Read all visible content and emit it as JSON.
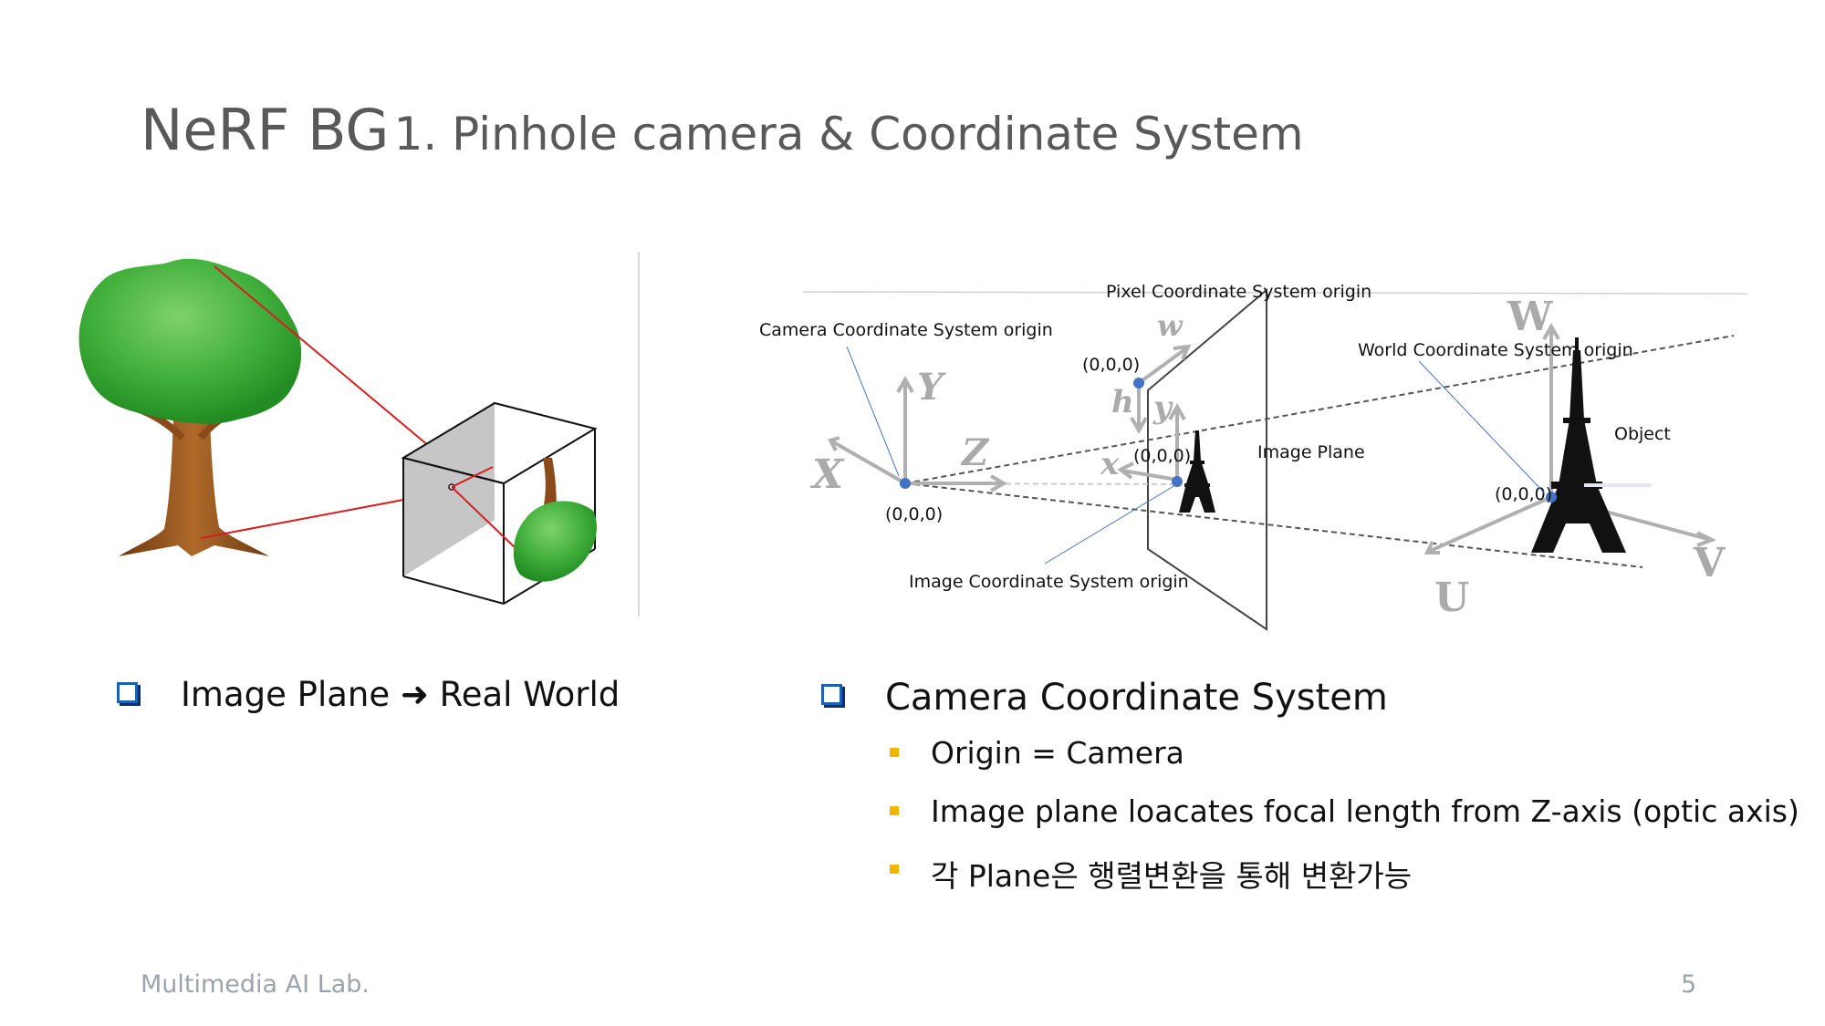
{
  "title": {
    "main": "NeRF BG",
    "sub": "1. Pinhole camera & Coordinate System"
  },
  "left_bullet": {
    "text_before": "Image Plane",
    "arrow": "➜",
    "text_after": "Real World"
  },
  "right_bullet": {
    "heading": "Camera Coordinate System",
    "items": [
      "Origin = Camera",
      "Image plane loacates focal length from Z-axis (optic axis)",
      "각 Plane은 행렬변환을 통해 변환가능"
    ]
  },
  "diagram": {
    "labels": {
      "pixel_origin": "Pixel Coordinate System origin",
      "camera_origin": "Camera Coordinate System origin",
      "world_origin": "World Coordinate System origin",
      "image_origin": "Image Coordinate System origin",
      "image_plane": "Image Plane",
      "object": "Object"
    },
    "coords": {
      "camera": "(0,0,0)",
      "pixel": "(0,0,0)",
      "image": "(0,0,0)",
      "world": "(0,0,0)"
    },
    "axes": {
      "camera": [
        "X",
        "Y",
        "Z"
      ],
      "pixel": [
        "w",
        "h"
      ],
      "image": [
        "x",
        "y"
      ],
      "world": [
        "U",
        "V",
        "W"
      ]
    }
  },
  "footer": {
    "lab": "Multimedia AI Lab.",
    "page": "5"
  },
  "colors": {
    "bullet_box": "#1f5fb4",
    "sub_bullet": "#f4b400",
    "origin_dot": "#4472c4",
    "title": "#595959",
    "footer": "#9aa4ad"
  }
}
